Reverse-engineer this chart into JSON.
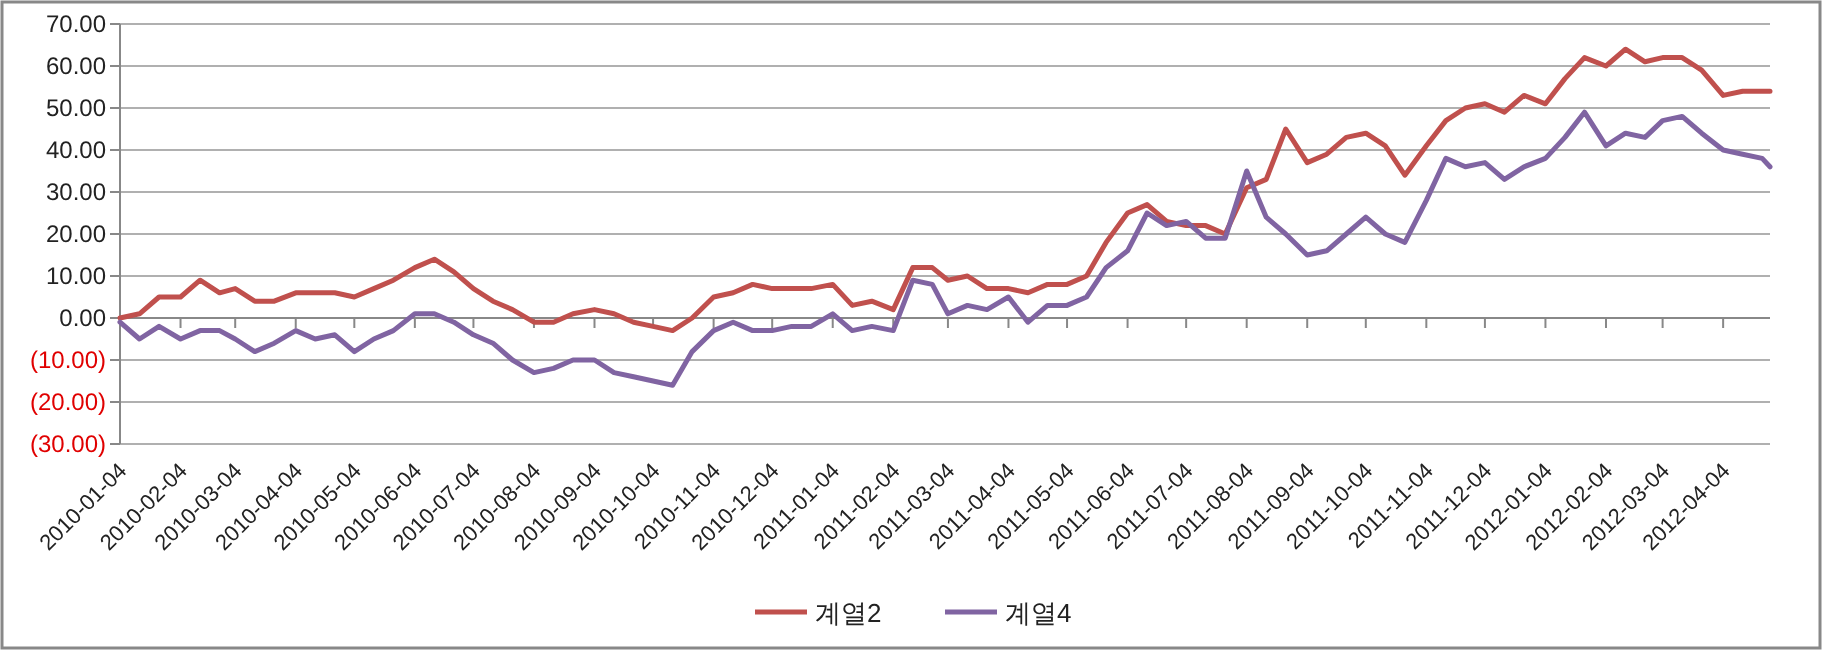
{
  "chart_data": {
    "type": "line",
    "x": [
      "2010-01-04",
      "2010-01-14",
      "2010-01-24",
      "2010-02-04",
      "2010-02-14",
      "2010-02-24",
      "2010-03-04",
      "2010-03-14",
      "2010-03-24",
      "2010-04-04",
      "2010-04-14",
      "2010-04-24",
      "2010-05-04",
      "2010-05-14",
      "2010-05-24",
      "2010-06-04",
      "2010-06-14",
      "2010-06-24",
      "2010-07-04",
      "2010-07-14",
      "2010-07-24",
      "2010-08-04",
      "2010-08-14",
      "2010-08-24",
      "2010-09-04",
      "2010-09-14",
      "2010-09-24",
      "2010-10-04",
      "2010-10-14",
      "2010-10-24",
      "2010-11-04",
      "2010-11-14",
      "2010-11-24",
      "2010-12-04",
      "2010-12-14",
      "2010-12-24",
      "2011-01-04",
      "2011-01-14",
      "2011-01-24",
      "2011-02-04",
      "2011-02-14",
      "2011-02-24",
      "2011-03-04",
      "2011-03-14",
      "2011-03-24",
      "2011-04-04",
      "2011-04-14",
      "2011-04-24",
      "2011-05-04",
      "2011-05-14",
      "2011-05-24",
      "2011-06-04",
      "2011-06-14",
      "2011-06-24",
      "2011-07-04",
      "2011-07-14",
      "2011-07-24",
      "2011-08-04",
      "2011-08-14",
      "2011-08-24",
      "2011-09-04",
      "2011-09-14",
      "2011-09-24",
      "2011-10-04",
      "2011-10-14",
      "2011-10-24",
      "2011-11-04",
      "2011-11-14",
      "2011-11-24",
      "2011-12-04",
      "2011-12-14",
      "2011-12-24",
      "2012-01-04",
      "2012-01-14",
      "2012-01-24",
      "2012-02-04",
      "2012-02-14",
      "2012-02-24",
      "2012-03-04",
      "2012-03-14",
      "2012-03-24",
      "2012-04-04",
      "2012-04-14",
      "2012-04-24",
      "2012-04-28"
    ],
    "series": [
      {
        "name": "계열2",
        "color": "#c0504d",
        "values": [
          0,
          1,
          5,
          5,
          9,
          6,
          7,
          4,
          4,
          6,
          6,
          6,
          5,
          7,
          9,
          12,
          14,
          11,
          7,
          4,
          2,
          -1,
          -1,
          1,
          2,
          1,
          -1,
          -2,
          -3,
          0,
          5,
          6,
          8,
          7,
          7,
          7,
          8,
          3,
          4,
          2,
          12,
          12,
          9,
          10,
          7,
          7,
          6,
          8,
          8,
          10,
          18,
          25,
          27,
          23,
          22,
          22,
          20,
          31,
          33,
          45,
          37,
          39,
          43,
          44,
          41,
          34,
          41,
          47,
          50,
          51,
          49,
          53,
          51,
          57,
          62,
          60,
          64,
          61,
          62,
          62,
          59,
          53,
          54,
          54,
          54
        ]
      },
      {
        "name": "계열4",
        "color": "#8064a2",
        "values": [
          -1,
          -5,
          -2,
          -5,
          -3,
          -3,
          -5,
          -8,
          -6,
          -3,
          -5,
          -4,
          -8,
          -5,
          -3,
          1,
          1,
          -1,
          -4,
          -6,
          -10,
          -13,
          -12,
          -10,
          -10,
          -13,
          -14,
          -15,
          -16,
          -8,
          -3,
          -1,
          -3,
          -3,
          -2,
          -2,
          1,
          -3,
          -2,
          -3,
          9,
          8,
          1,
          3,
          2,
          5,
          -1,
          3,
          3,
          5,
          12,
          16,
          25,
          22,
          23,
          19,
          19,
          35,
          24,
          20,
          15,
          16,
          20,
          24,
          20,
          18,
          28,
          38,
          36,
          37,
          33,
          36,
          38,
          43,
          49,
          41,
          44,
          43,
          47,
          48,
          44,
          40,
          39,
          38,
          36
        ]
      }
    ],
    "xlim": [
      "2010-01-04",
      "2012-04-28"
    ],
    "xticks": [
      "2010-01-04",
      "2010-02-04",
      "2010-03-04",
      "2010-04-04",
      "2010-05-04",
      "2010-06-04",
      "2010-07-04",
      "2010-08-04",
      "2010-09-04",
      "2010-10-04",
      "2010-11-04",
      "2010-12-04",
      "2011-01-04",
      "2011-02-04",
      "2011-03-04",
      "2011-04-04",
      "2011-05-04",
      "2011-06-04",
      "2011-07-04",
      "2011-08-04",
      "2011-09-04",
      "2011-10-04",
      "2011-11-04",
      "2011-12-04",
      "2012-01-04",
      "2012-02-04",
      "2012-03-04",
      "2012-04-04"
    ],
    "ylim": [
      -30,
      70
    ],
    "yticks": [
      {
        "value": 70,
        "label": "70.00"
      },
      {
        "value": 60,
        "label": "60.00"
      },
      {
        "value": 50,
        "label": "50.00"
      },
      {
        "value": 40,
        "label": "40.00"
      },
      {
        "value": 30,
        "label": "30.00"
      },
      {
        "value": 20,
        "label": "20.00"
      },
      {
        "value": 10,
        "label": "10.00"
      },
      {
        "value": 0,
        "label": "0.00"
      },
      {
        "value": -10,
        "label": "(10.00)"
      },
      {
        "value": -20,
        "label": "(20.00)"
      },
      {
        "value": -30,
        "label": "(30.00)"
      }
    ],
    "grid": "y",
    "legend": "bottom",
    "marker": "none",
    "line_style": "solid"
  }
}
